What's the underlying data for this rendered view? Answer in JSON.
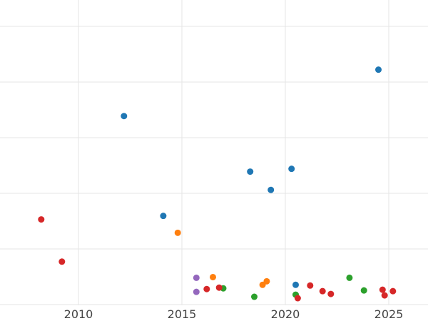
{
  "chart_data": {
    "type": "scatter",
    "title": "",
    "xlabel": "",
    "ylabel": "",
    "xlim": [
      2008.0,
      2026.9
    ],
    "ylim": [
      0,
      42
    ],
    "xticks": [
      2010,
      2015,
      2020,
      2025
    ],
    "xtick_labels": [
      "2010",
      "2015",
      "2020",
      "2025"
    ],
    "yticks": [
      5,
      12.5,
      20,
      27.5,
      35,
      42.5
    ],
    "grid": true,
    "legend": "none",
    "series": [
      {
        "color": "#1f77b4",
        "points": [
          {
            "x": 2012.2,
            "y": 26.0
          },
          {
            "x": 2014.1,
            "y": 11.8
          },
          {
            "x": 2018.3,
            "y": 18.1
          },
          {
            "x": 2019.3,
            "y": 15.5
          },
          {
            "x": 2020.3,
            "y": 18.5
          },
          {
            "x": 2020.5,
            "y": 2.0
          },
          {
            "x": 2024.5,
            "y": 32.6
          }
        ]
      },
      {
        "color": "#ff7f0e",
        "points": [
          {
            "x": 2014.8,
            "y": 9.4
          },
          {
            "x": 2016.5,
            "y": 3.1
          },
          {
            "x": 2018.9,
            "y": 2.0
          },
          {
            "x": 2019.1,
            "y": 2.5
          }
        ]
      },
      {
        "color": "#2ca02c",
        "points": [
          {
            "x": 2017.0,
            "y": 1.5
          },
          {
            "x": 2018.5,
            "y": 0.3
          },
          {
            "x": 2020.5,
            "y": 0.6
          },
          {
            "x": 2023.1,
            "y": 3.0
          },
          {
            "x": 2023.8,
            "y": 1.2
          }
        ]
      },
      {
        "color": "#d62728",
        "points": [
          {
            "x": 2008.2,
            "y": 11.3
          },
          {
            "x": 2009.2,
            "y": 5.3
          },
          {
            "x": 2016.2,
            "y": 1.4
          },
          {
            "x": 2016.8,
            "y": 1.6
          },
          {
            "x": 2020.6,
            "y": 0.1
          },
          {
            "x": 2021.2,
            "y": 1.9
          },
          {
            "x": 2021.8,
            "y": 1.1
          },
          {
            "x": 2022.2,
            "y": 0.7
          },
          {
            "x": 2024.7,
            "y": 1.3
          },
          {
            "x": 2024.8,
            "y": 0.5
          },
          {
            "x": 2025.2,
            "y": 1.1
          }
        ]
      },
      {
        "color": "#9467bd",
        "points": [
          {
            "x": 2015.7,
            "y": 3.0
          },
          {
            "x": 2015.7,
            "y": 1.0
          }
        ]
      }
    ]
  }
}
